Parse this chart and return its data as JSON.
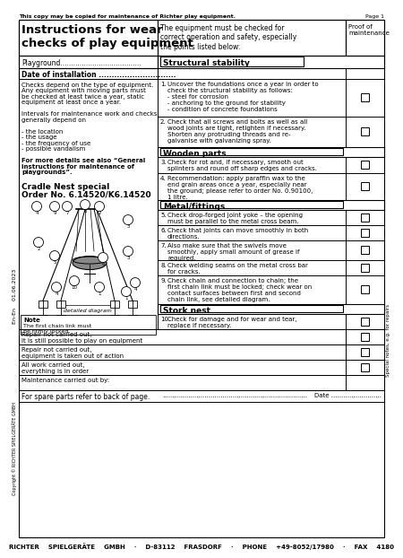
{
  "top_note": "This copy may be copied for maintenance of Richter play equipment.",
  "page": "Page 1",
  "title_left": "Instructions for wear\nchecks of play equipment",
  "title_right": "The equipment must be checked for\ncorrect operation and safety, especially\nthe points listed below:",
  "title_col3": "Proof of\nmaintenance",
  "playground_label": "Playground......................................",
  "date_label": "Date of installation ..............................",
  "left_body": [
    "Checks depend on the type of equipment.",
    "Any equipment with moving parts must",
    "be checked at least twice a year, static",
    "equipment at least once a year.",
    "",
    "Intervals for maintenance work and checks",
    "generally depend on",
    "",
    "- the location",
    "- the usage",
    "- the frequency of use",
    "- possible vandalism",
    "",
    "For more details see also “General",
    "instructions for maintenance of",
    "playgrounds”."
  ],
  "product_title": "Cradle Nest special",
  "product_order": "Order No. 6.14520/K6.14520",
  "sections": [
    {
      "header": "Structural stability",
      "items": [
        {
          "num": "1.",
          "text": "Uncover the foundations once a year in order to\ncheck the structural stability as follows:\n- steel for corrosion\n- anchoring to the ground for stability\n- condition of concrete foundations"
        },
        {
          "num": "2.",
          "text": "Check that all screws and bolts as well as all\nwood joints are tight, retighten if necessary.\nShorten any protruding threads and re-\ngalvanise with galvanizing spray."
        }
      ]
    },
    {
      "header": "Wooden parts",
      "items": [
        {
          "num": "3.",
          "text": "Check for rot and, if necessary, smooth out\nsplinters and round off sharp edges and cracks."
        },
        {
          "num": "4.",
          "text": "Recommendation: apply paraffin wax to the\nend grain areas once a year, especially near\nthe ground; please refer to order No. 0.90100,\n1 litre."
        }
      ]
    },
    {
      "header": "Metal/fittings",
      "items": [
        {
          "num": "5.",
          "text": "Check drop-forged joint yoke – the opening\nmust be parallel to the metal cross beam."
        },
        {
          "num": "6.",
          "text": "Check that joints can move smoothly in both\ndirections."
        },
        {
          "num": "7.",
          "text": "Also make sure that the swivels move\nsmoothly, apply small amount of grease if\nrequired."
        },
        {
          "num": "8.",
          "text": "Check welding seams on the metal cross bar\nfor cracks."
        },
        {
          "num": "9.",
          "text": "Check chain and connection to chain; the\nfirst chain link must be locked; check wear on\ncontact surfaces between first and second\nchain link, see detailed diagram."
        }
      ]
    },
    {
      "header": "Stork nest",
      "items": [
        {
          "num": "10.",
          "text": "Check for damage and for wear and tear,\nreplace if necessary."
        }
      ]
    }
  ],
  "bottom_labels": [
    "Repair not carried out,\nit is still possible to play on equipment",
    "Repair not carried out,\nequipment is taken out of action",
    "All work carried out,\neverything is in order",
    "Maintenance carried out by:"
  ],
  "footer_left": "For spare parts refer to back of page.",
  "footer_dots": "........................................................................",
  "footer_date": "Date .........................",
  "footer_company": "RICHTER    SPIELGERÄTE    GMBH    ·    D-83112    FRASDORF    ·    PHONE    +49-8052/17980    ·    FAX    4180",
  "side_note_top": "En-En    01.06.2023",
  "side_note_bottom": "Copyright © RICHTER SPIELGERÄTE GMBH",
  "special_note": "Special notes, e.g. for repairs",
  "diagram_label": "detailed diagram",
  "note_title": "Note",
  "note_text": "The first chain link must\nbe firmly locked.",
  "num_labels_diagram": [
    "4",
    "9",
    "7",
    "2",
    "5",
    "6",
    "3",
    "2",
    "3",
    "4",
    "10",
    "1",
    "1",
    "4"
  ],
  "bg_color": "#ffffff"
}
